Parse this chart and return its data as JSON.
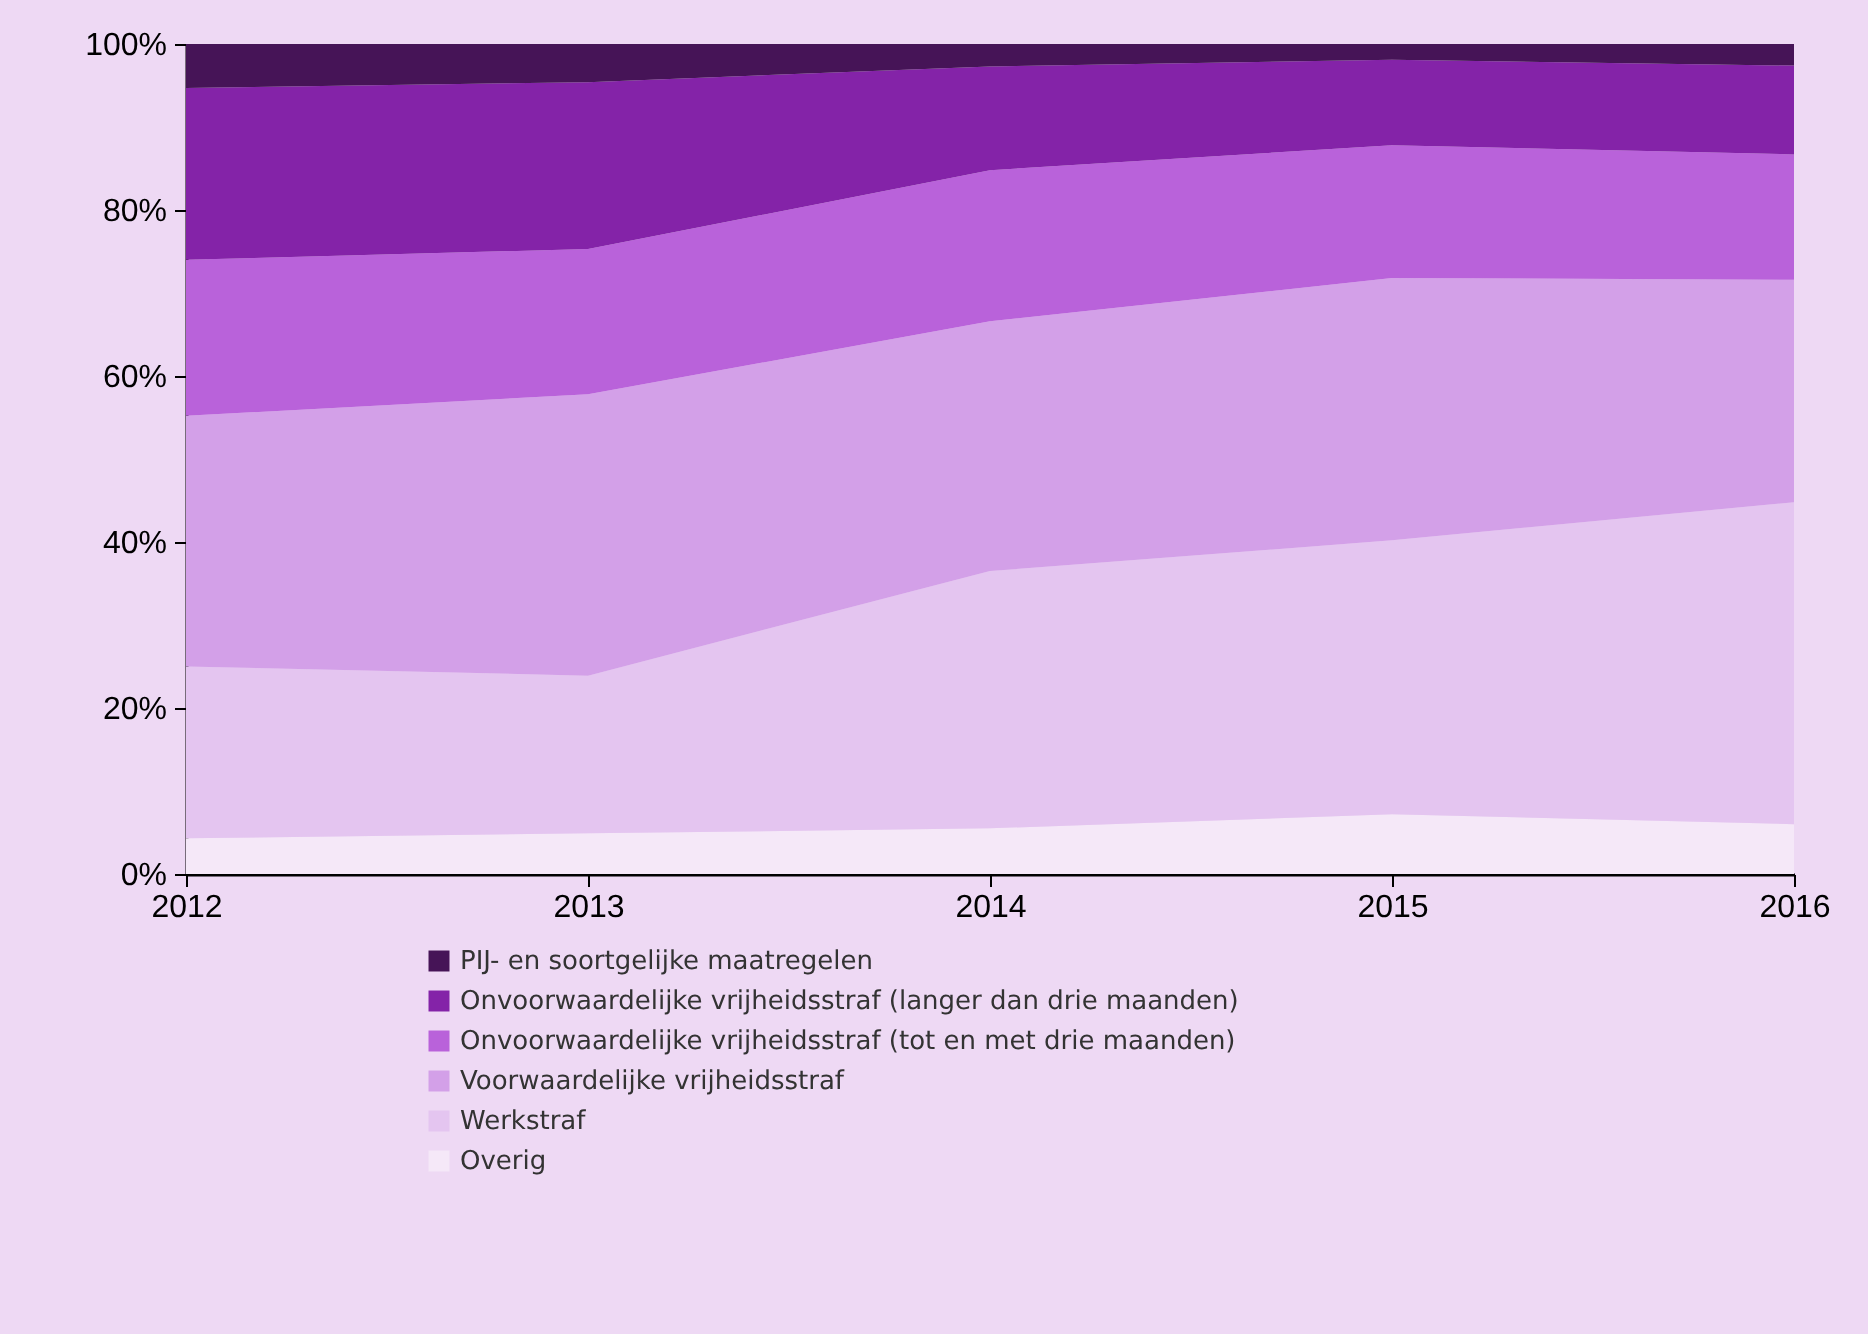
{
  "chart_data": {
    "type": "area",
    "stacked": true,
    "x": [
      2012,
      2013,
      2014,
      2015,
      2016
    ],
    "xlim": [
      2012,
      2016
    ],
    "xticks": [
      2012,
      2013,
      2014,
      2015,
      2016
    ],
    "ylim": [
      0,
      100
    ],
    "yticks": [
      {
        "value": 0,
        "label": "0%"
      },
      {
        "value": 20,
        "label": "20%"
      },
      {
        "value": 40,
        "label": "40%"
      },
      {
        "value": 60,
        "label": "60%"
      },
      {
        "value": 80,
        "label": "80%"
      },
      {
        "value": 100,
        "label": "100%"
      }
    ],
    "grid": false,
    "legend": "bottom",
    "series": [
      {
        "name": "Overig",
        "color": "#f5e8f8",
        "values": [
          4.3,
          4.9,
          5.5,
          7.2,
          6.0
        ]
      },
      {
        "name": "Werkstraf",
        "color": "#e4c5f0",
        "values": [
          20.7,
          19.0,
          31.0,
          33.0,
          38.8
        ]
      },
      {
        "name": "Voorwaardelijke vrijheidsstraf",
        "color": "#d3a0e8",
        "values": [
          30.2,
          33.9,
          30.1,
          31.6,
          26.8
        ]
      },
      {
        "name": "Onvoorwaardelijke vrijheidsstraf (tot en met drie maanden)",
        "color": "#b962da",
        "values": [
          18.8,
          17.5,
          18.2,
          16.0,
          15.1
        ]
      },
      {
        "name": "Onvoorwaardelijke vrijheidsstraf (langer dan drie maanden)",
        "color": "#8423a8",
        "values": [
          20.7,
          20.1,
          12.5,
          10.3,
          10.7
        ]
      },
      {
        "name": "PIJ- en soortgelijke maatregelen",
        "color": "#461457",
        "values": [
          5.3,
          4.6,
          2.7,
          1.9,
          2.6
        ]
      }
    ]
  }
}
